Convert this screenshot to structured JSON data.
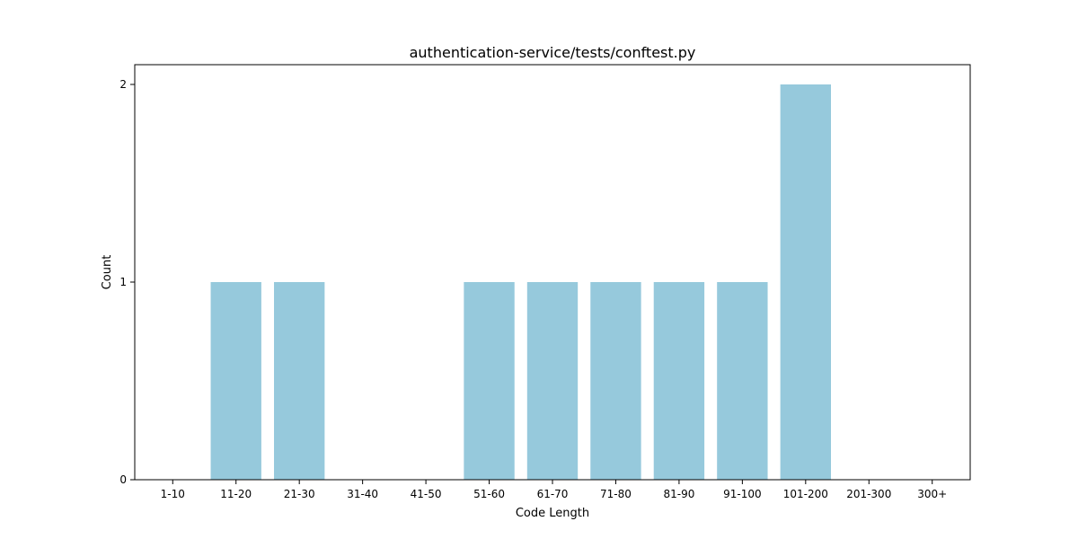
{
  "chart_data": {
    "type": "bar",
    "title": "authentication-service/tests/conftest.py",
    "xlabel": "Code Length",
    "ylabel": "Count",
    "categories": [
      "1-10",
      "11-20",
      "21-30",
      "31-40",
      "41-50",
      "51-60",
      "61-70",
      "71-80",
      "81-90",
      "91-100",
      "101-200",
      "201-300",
      "300+"
    ],
    "values": [
      0,
      1,
      1,
      0,
      0,
      1,
      1,
      1,
      1,
      1,
      2,
      0,
      0
    ],
    "yticks": [
      0,
      1,
      2
    ],
    "ylim": [
      0,
      2.1
    ],
    "bar_color": "#96c9dc",
    "grid": false,
    "legend": "none"
  }
}
